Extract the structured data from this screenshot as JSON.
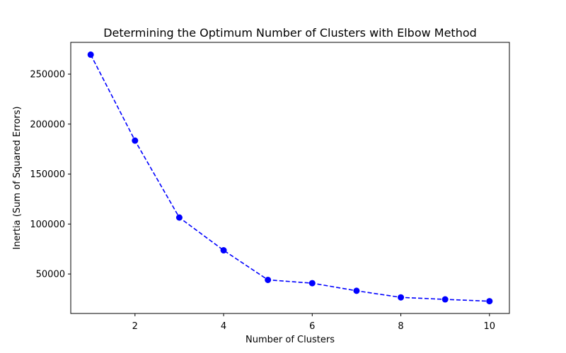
{
  "chart_data": {
    "type": "line",
    "title": "Determining the Optimum Number of Clusters with Elbow Method",
    "xlabel": "Number of Clusters",
    "ylabel": "Inertia (Sum of Squared Errors)",
    "x": [
      1,
      2,
      3,
      4,
      5,
      6,
      7,
      8,
      9,
      10
    ],
    "series": [
      {
        "values": [
          269500,
          183500,
          106500,
          73700,
          44100,
          40800,
          33200,
          26600,
          24600,
          22800
        ],
        "color": "#0000ff",
        "line_style": "dashed",
        "marker": "circle"
      }
    ],
    "xticks": [
      2,
      4,
      6,
      8,
      10
    ],
    "yticks": [
      50000,
      100000,
      150000,
      200000,
      250000
    ],
    "xlim": [
      0.55,
      10.45
    ],
    "ylim": [
      10500,
      281800
    ],
    "grid": false,
    "legend": "none"
  }
}
